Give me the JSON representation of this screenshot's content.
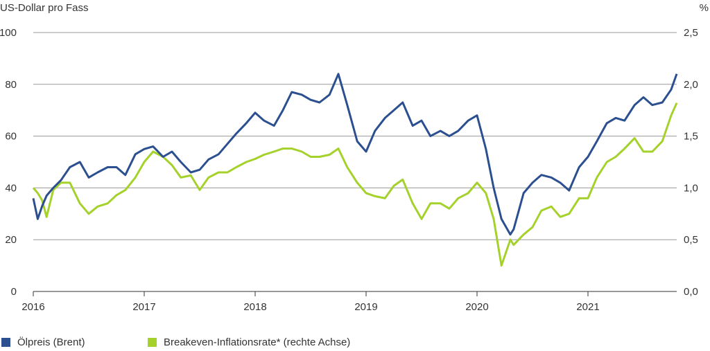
{
  "chart_data": {
    "type": "line",
    "left_axis_label": "US-Dollar pro Fass",
    "right_axis_label": "%",
    "x_ticks": [
      "2016",
      "2017",
      "2018",
      "2019",
      "2020",
      "2021"
    ],
    "y_left_ticks": [
      "0",
      "20",
      "40",
      "60",
      "80",
      "100"
    ],
    "y_right_ticks": [
      "0,0",
      "0,5",
      "1,0",
      "1,5",
      "2,0",
      "2,5"
    ],
    "y_left_range": [
      0,
      100
    ],
    "y_right_range": [
      0.0,
      2.5
    ],
    "x_range": [
      2016.0,
      2021.8
    ],
    "grid": "horizontal",
    "legend_position": "bottom-left",
    "series": [
      {
        "name": "Ölpreis (Brent)",
        "axis": "left",
        "color": "#2b4f8f",
        "x": [
          2016.0,
          2016.04,
          2016.08,
          2016.12,
          2016.18,
          2016.25,
          2016.33,
          2016.42,
          2016.5,
          2016.58,
          2016.67,
          2016.75,
          2016.83,
          2016.92,
          2017.0,
          2017.08,
          2017.17,
          2017.25,
          2017.33,
          2017.42,
          2017.5,
          2017.58,
          2017.67,
          2017.75,
          2017.83,
          2017.92,
          2018.0,
          2018.08,
          2018.17,
          2018.25,
          2018.33,
          2018.42,
          2018.5,
          2018.58,
          2018.67,
          2018.75,
          2018.83,
          2018.92,
          2019.0,
          2019.08,
          2019.17,
          2019.25,
          2019.33,
          2019.42,
          2019.5,
          2019.58,
          2019.67,
          2019.75,
          2019.83,
          2019.92,
          2020.0,
          2020.08,
          2020.15,
          2020.22,
          2020.3,
          2020.33,
          2020.42,
          2020.5,
          2020.58,
          2020.67,
          2020.75,
          2020.83,
          2020.92,
          2021.0,
          2021.08,
          2021.17,
          2021.25,
          2021.33,
          2021.42,
          2021.5,
          2021.58,
          2021.67,
          2021.75,
          2021.8
        ],
        "values": [
          36,
          28,
          33,
          37,
          40,
          43,
          48,
          50,
          44,
          46,
          48,
          48,
          45,
          53,
          55,
          56,
          52,
          54,
          50,
          46,
          47,
          51,
          53,
          57,
          61,
          65,
          69,
          66,
          64,
          70,
          77,
          76,
          74,
          73,
          76,
          84,
          72,
          58,
          54,
          62,
          67,
          70,
          73,
          64,
          66,
          60,
          62,
          60,
          62,
          66,
          68,
          55,
          40,
          28,
          22,
          24,
          38,
          42,
          45,
          44,
          42,
          39,
          48,
          52,
          58,
          65,
          67,
          66,
          72,
          75,
          72,
          73,
          78,
          84
        ]
      },
      {
        "name": "Breakeven-Inflationsrate* (rechte Achse)",
        "axis": "right",
        "color": "#a4d12a",
        "x": [
          2016.0,
          2016.04,
          2016.08,
          2016.12,
          2016.18,
          2016.25,
          2016.33,
          2016.42,
          2016.5,
          2016.58,
          2016.67,
          2016.75,
          2016.83,
          2016.92,
          2017.0,
          2017.08,
          2017.17,
          2017.25,
          2017.33,
          2017.42,
          2017.5,
          2017.58,
          2017.67,
          2017.75,
          2017.83,
          2017.92,
          2018.0,
          2018.08,
          2018.17,
          2018.25,
          2018.33,
          2018.42,
          2018.5,
          2018.58,
          2018.67,
          2018.75,
          2018.83,
          2018.92,
          2019.0,
          2019.08,
          2019.17,
          2019.25,
          2019.33,
          2019.42,
          2019.5,
          2019.58,
          2019.67,
          2019.75,
          2019.83,
          2019.92,
          2020.0,
          2020.08,
          2020.15,
          2020.22,
          2020.3,
          2020.33,
          2020.42,
          2020.5,
          2020.58,
          2020.67,
          2020.75,
          2020.83,
          2020.92,
          2021.0,
          2021.08,
          2021.17,
          2021.25,
          2021.33,
          2021.42,
          2021.5,
          2021.58,
          2021.67,
          2021.75,
          2021.8
        ],
        "values": [
          1.0,
          0.95,
          0.88,
          0.72,
          0.98,
          1.05,
          1.05,
          0.85,
          0.75,
          0.82,
          0.85,
          0.93,
          0.98,
          1.1,
          1.25,
          1.35,
          1.3,
          1.22,
          1.1,
          1.12,
          0.98,
          1.1,
          1.15,
          1.15,
          1.2,
          1.25,
          1.28,
          1.32,
          1.35,
          1.38,
          1.38,
          1.35,
          1.3,
          1.3,
          1.32,
          1.38,
          1.2,
          1.05,
          0.95,
          0.92,
          0.9,
          1.02,
          1.08,
          0.85,
          0.7,
          0.85,
          0.85,
          0.8,
          0.9,
          0.95,
          1.05,
          0.95,
          0.7,
          0.25,
          0.5,
          0.45,
          0.55,
          0.62,
          0.78,
          0.82,
          0.72,
          0.75,
          0.9,
          0.9,
          1.1,
          1.25,
          1.3,
          1.38,
          1.48,
          1.35,
          1.35,
          1.45,
          1.7,
          1.82
        ]
      }
    ]
  }
}
